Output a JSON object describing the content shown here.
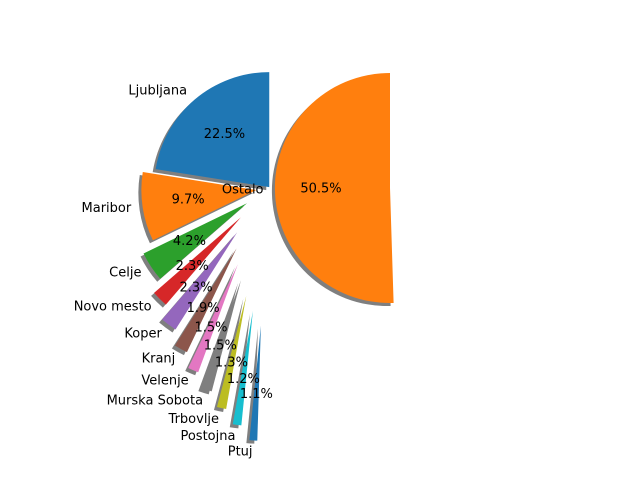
{
  "chart_data": [
    {
      "type": "pie",
      "title": "",
      "categories": [
        "Ljubljana",
        "Maribor",
        "Celje",
        "Novo mesto",
        "Koper",
        "Kranj",
        "Velenje",
        "Murska Sobota",
        "Trbovlje",
        "Postojna",
        "Ptuj"
      ],
      "values": [
        22.5,
        9.7,
        4.2,
        2.3,
        2.3,
        1.9,
        1.5,
        1.5,
        1.3,
        1.2,
        1.1
      ],
      "pct_labels": [
        "22.5%",
        "9.7%",
        "4.2%",
        "2.3%",
        "2.3%",
        "1.9%",
        "1.5%",
        "1.5%",
        "1.3%",
        "1.2%",
        "1.1%"
      ],
      "colors": [
        "#1f77b4",
        "#ff7f0e",
        "#2ca02c",
        "#d62728",
        "#9467bd",
        "#8c564b",
        "#e377c2",
        "#7f7f7f",
        "#bcbd22",
        "#17becf",
        "#1f77b4"
      ],
      "start_angle_deg": 90,
      "shadow": true
    },
    {
      "type": "pie",
      "title": "",
      "categories": [
        "Ostalo"
      ],
      "values": [
        50.5
      ],
      "pct_labels": [
        "50.5%"
      ],
      "colors": [
        "#ff7f0e"
      ],
      "start_angle_deg": 90,
      "shadow": true
    }
  ]
}
